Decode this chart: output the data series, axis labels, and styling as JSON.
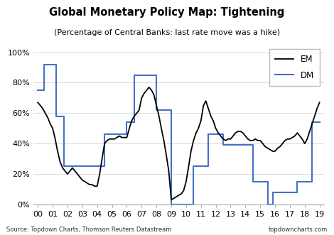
{
  "title": "Global Monetary Policy Map: Tightening",
  "subtitle": "(Percentage of Central Banks: last rate move was a hike)",
  "source_left": "Source: Topdown Charts, Thomson Reuters Datastream",
  "source_right": "topdowncharts.com",
  "ylim": [
    0,
    1.05
  ],
  "yticks": [
    0,
    0.2,
    0.4,
    0.6,
    0.8,
    1.0
  ],
  "ytick_labels": [
    "0%",
    "20%",
    "40%",
    "60%",
    "80%",
    "100%"
  ],
  "em_color": "#000000",
  "dm_color": "#4472C4",
  "legend_labels": [
    "EM",
    "DM"
  ],
  "em_x": [
    2000.0,
    2000.17,
    2000.33,
    2000.5,
    2000.67,
    2000.83,
    2001.0,
    2001.17,
    2001.33,
    2001.5,
    2001.67,
    2001.83,
    2002.0,
    2002.17,
    2002.33,
    2002.5,
    2002.67,
    2002.83,
    2003.0,
    2003.17,
    2003.33,
    2003.5,
    2003.67,
    2003.83,
    2004.0,
    2004.17,
    2004.33,
    2004.5,
    2004.67,
    2004.83,
    2005.0,
    2005.17,
    2005.33,
    2005.5,
    2005.67,
    2005.83,
    2006.0,
    2006.17,
    2006.33,
    2006.5,
    2006.67,
    2006.83,
    2007.0,
    2007.17,
    2007.33,
    2007.5,
    2007.67,
    2007.83,
    2008.0,
    2008.17,
    2008.33,
    2008.5,
    2008.67,
    2008.83,
    2009.0,
    2009.17,
    2009.33,
    2009.5,
    2009.67,
    2009.83,
    2010.0,
    2010.17,
    2010.33,
    2010.5,
    2010.67,
    2010.83,
    2011.0,
    2011.17,
    2011.33,
    2011.5,
    2011.67,
    2011.83,
    2012.0,
    2012.17,
    2012.33,
    2012.5,
    2012.67,
    2012.83,
    2013.0,
    2013.17,
    2013.33,
    2013.5,
    2013.67,
    2013.83,
    2014.0,
    2014.17,
    2014.33,
    2014.5,
    2014.67,
    2014.83,
    2015.0,
    2015.17,
    2015.33,
    2015.5,
    2015.67,
    2015.83,
    2016.0,
    2016.17,
    2016.33,
    2016.5,
    2016.67,
    2016.83,
    2017.0,
    2017.17,
    2017.33,
    2017.5,
    2017.67,
    2017.83,
    2018.0,
    2018.17,
    2018.33,
    2018.5,
    2018.67,
    2018.83,
    2019.0
  ],
  "em_y": [
    0.67,
    0.65,
    0.63,
    0.6,
    0.57,
    0.53,
    0.5,
    0.43,
    0.35,
    0.28,
    0.24,
    0.22,
    0.2,
    0.22,
    0.24,
    0.22,
    0.2,
    0.18,
    0.16,
    0.15,
    0.14,
    0.13,
    0.13,
    0.12,
    0.12,
    0.2,
    0.3,
    0.4,
    0.42,
    0.43,
    0.43,
    0.43,
    0.44,
    0.45,
    0.44,
    0.44,
    0.44,
    0.5,
    0.55,
    0.58,
    0.6,
    0.62,
    0.7,
    0.73,
    0.75,
    0.77,
    0.75,
    0.72,
    0.65,
    0.58,
    0.5,
    0.42,
    0.32,
    0.22,
    0.03,
    0.04,
    0.05,
    0.06,
    0.07,
    0.09,
    0.15,
    0.25,
    0.35,
    0.42,
    0.47,
    0.5,
    0.55,
    0.65,
    0.68,
    0.63,
    0.58,
    0.55,
    0.5,
    0.47,
    0.45,
    0.43,
    0.42,
    0.43,
    0.43,
    0.45,
    0.47,
    0.48,
    0.48,
    0.47,
    0.45,
    0.43,
    0.42,
    0.42,
    0.43,
    0.42,
    0.42,
    0.4,
    0.38,
    0.37,
    0.36,
    0.35,
    0.35,
    0.37,
    0.38,
    0.4,
    0.42,
    0.43,
    0.43,
    0.44,
    0.45,
    0.47,
    0.45,
    0.43,
    0.4,
    0.43,
    0.48,
    0.53,
    0.58,
    0.63,
    0.67
  ],
  "dm_x": [
    2000.0,
    2000.42,
    2000.83,
    2001.25,
    2001.75,
    2002.5,
    2004.0,
    2004.5,
    2005.0,
    2006.0,
    2006.5,
    2007.0,
    2008.0,
    2008.5,
    2009.0,
    2010.0,
    2010.5,
    2011.0,
    2011.5,
    2012.0,
    2012.5,
    2013.0,
    2014.5,
    2015.0,
    2015.5,
    2015.83,
    2016.0,
    2016.5,
    2017.0,
    2017.5,
    2018.0,
    2018.5,
    2019.0
  ],
  "dm_y": [
    0.75,
    0.92,
    0.92,
    0.58,
    0.25,
    0.25,
    0.25,
    0.46,
    0.46,
    0.54,
    0.85,
    0.85,
    0.62,
    0.62,
    0.0,
    0.0,
    0.25,
    0.25,
    0.46,
    0.46,
    0.39,
    0.39,
    0.15,
    0.15,
    0.0,
    0.08,
    0.08,
    0.08,
    0.08,
    0.15,
    0.15,
    0.54,
    0.54
  ],
  "xtick_positions": [
    2000,
    2001,
    2002,
    2003,
    2004,
    2005,
    2006,
    2007,
    2008,
    2009,
    2010,
    2011,
    2012,
    2013,
    2014,
    2015,
    2016,
    2017,
    2018,
    2019
  ],
  "xtick_labels": [
    "00",
    "01",
    "02",
    "03",
    "04",
    "05",
    "06",
    "07",
    "08",
    "09",
    "10",
    "11",
    "12",
    "13",
    "14",
    "15",
    "16",
    "17",
    "18",
    "19"
  ],
  "xlim": [
    1999.7,
    2019.3
  ]
}
